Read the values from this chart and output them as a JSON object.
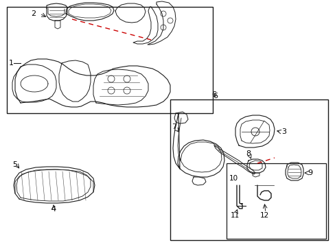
{
  "background": "#ffffff",
  "line_color": "#1a1a1a",
  "red_dash_color": "#cc0000",
  "fig_width": 4.89,
  "fig_height": 3.6,
  "dpi": 100
}
